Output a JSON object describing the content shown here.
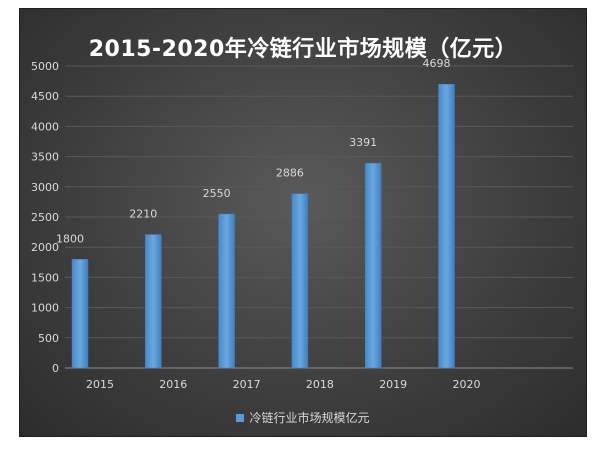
{
  "chart_data": {
    "type": "bar",
    "title": "2015-2020年冷链行业市场规模（亿元）",
    "xlabel": "",
    "ylabel": "",
    "categories": [
      "2015",
      "2016",
      "2017",
      "2018",
      "2019",
      "2020"
    ],
    "series": [
      {
        "name": "冷链行业市场规模亿元",
        "values": [
          1800,
          2210,
          2550,
          2886,
          3391,
          4698
        ]
      }
    ],
    "ylim": [
      0,
      5000
    ],
    "yticks": [
      0,
      500,
      1000,
      1500,
      2000,
      2500,
      3000,
      3500,
      4000,
      4500,
      5000
    ],
    "grid": true,
    "legend_position": "bottom",
    "colors": {
      "bar": "#5b9bd5",
      "bar_dark": "#3f7fbf",
      "background": "#404040",
      "grid": "#595959",
      "text": "#d9d9d9"
    }
  }
}
